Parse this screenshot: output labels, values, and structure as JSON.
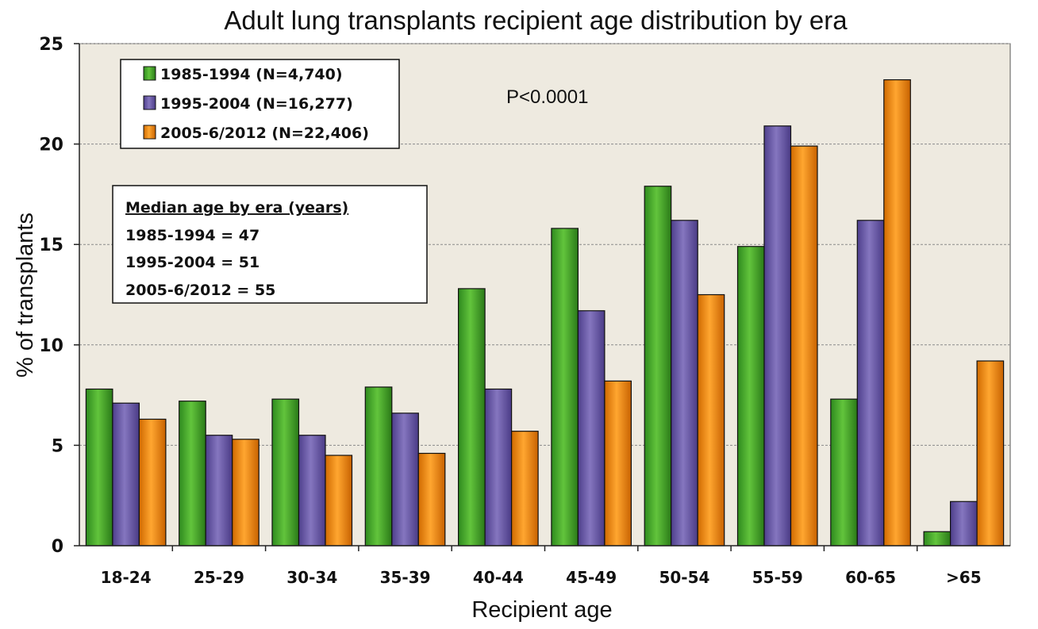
{
  "chart_data": {
    "type": "bar",
    "title": "Adult lung transplants recipient age distribution by era",
    "xlabel": "Recipient age",
    "ylabel": "% of transplants",
    "ylim": [
      0,
      25
    ],
    "yticks": [
      0,
      5,
      10,
      15,
      20,
      25
    ],
    "grid": true,
    "categories": [
      "18-24",
      "25-29",
      "30-34",
      "35-39",
      "40-44",
      "45-49",
      "50-54",
      "55-59",
      "60-65",
      ">65"
    ],
    "series": [
      {
        "name": "1985-1994 (N=4,740)",
        "color": "#4caf2a",
        "values": [
          7.8,
          7.2,
          7.3,
          7.9,
          12.8,
          15.8,
          17.9,
          14.9,
          7.3,
          0.7
        ]
      },
      {
        "name": "1995-2004 (N=16,277)",
        "color": "#7060ac",
        "values": [
          7.1,
          5.5,
          5.5,
          6.6,
          7.8,
          11.7,
          16.2,
          20.9,
          16.2,
          2.2
        ]
      },
      {
        "name": "2005-6/2012 (N=22,406)",
        "color": "#f08c0c",
        "values": [
          6.3,
          5.3,
          4.5,
          4.6,
          5.7,
          8.2,
          12.5,
          19.9,
          23.2,
          9.2
        ]
      }
    ],
    "legend_position": "top-left",
    "annotations": {
      "pvalue": "P<0.0001",
      "median_box": {
        "heading": "Median age by era (years)",
        "lines": [
          "1985-1994 = 47",
          "1995-2004 = 51",
          "2005-6/2012 = 55"
        ]
      }
    }
  },
  "colors": {
    "plot_background": "#eeeae0",
    "gridline": "#8a8a8a"
  }
}
